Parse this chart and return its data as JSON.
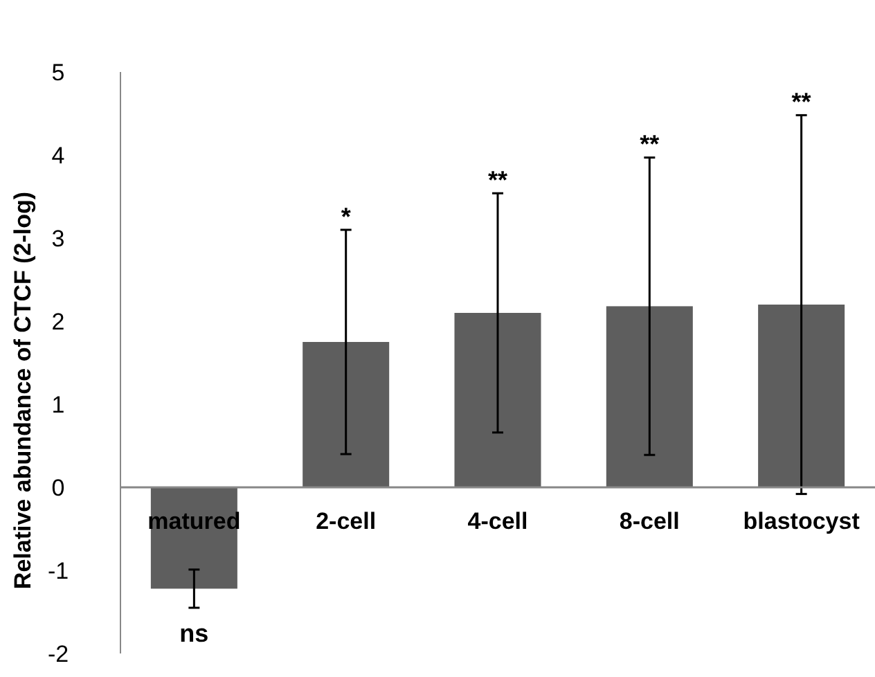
{
  "chart_data": {
    "type": "bar",
    "ylabel": "Relative abundance of CTCF (2-log)",
    "categories": [
      "matured",
      "2-cell",
      "4-cell",
      "8-cell",
      "blastocyst"
    ],
    "values": [
      -1.22,
      1.75,
      2.1,
      2.18,
      2.2
    ],
    "errors": [
      0.23,
      1.35,
      1.44,
      1.79,
      2.28
    ],
    "color": "#5e5e5e",
    "ylim": [
      -2,
      5
    ],
    "yticks": [
      -2,
      -1,
      0,
      1,
      2,
      3,
      4,
      5
    ],
    "grid": false,
    "annotations": [
      "ns",
      "*",
      "**",
      "**",
      "**"
    ]
  }
}
